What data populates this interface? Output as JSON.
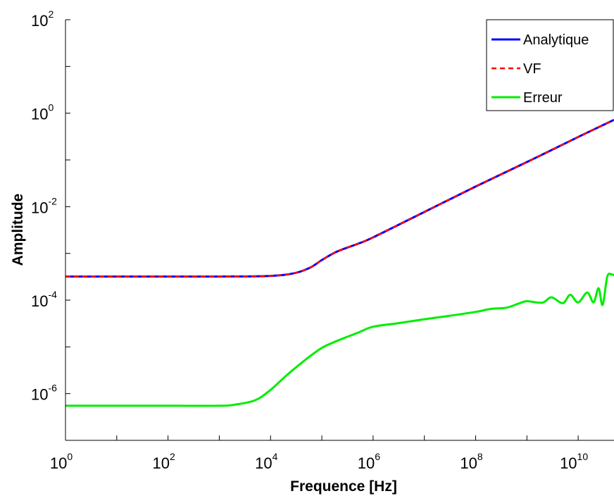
{
  "chart_data": {
    "type": "line",
    "xlabel": "Frequence [Hz]",
    "ylabel": "Amplitude",
    "xscale": "log",
    "yscale": "log",
    "xlim": [
      1,
      50000000000
    ],
    "ylim": [
      1e-07,
      100
    ],
    "grid": false,
    "legend_position": "top-right",
    "x_ticks": [
      {
        "base": "10",
        "exp": "0"
      },
      {
        "base": "10",
        "exp": "2"
      },
      {
        "base": "10",
        "exp": "4"
      },
      {
        "base": "10",
        "exp": "6"
      },
      {
        "base": "10",
        "exp": "8"
      },
      {
        "base": "10",
        "exp": "10"
      }
    ],
    "y_ticks": [
      {
        "base": "10",
        "exp": "-6"
      },
      {
        "base": "10",
        "exp": "-4"
      },
      {
        "base": "10",
        "exp": "-2"
      },
      {
        "base": "10",
        "exp": "0"
      },
      {
        "base": "10",
        "exp": "2"
      }
    ],
    "series": [
      {
        "name": "Analytique",
        "color": "#0000ff",
        "style": "solid",
        "x": [
          1,
          10,
          100,
          1000,
          10000,
          30000,
          60000,
          100000,
          200000,
          500000,
          1000000,
          10000000,
          100000000,
          1000000000,
          10000000000,
          50000000000
        ],
        "y": [
          0.00032,
          0.00032,
          0.00032,
          0.00032,
          0.00033,
          0.00038,
          0.0005,
          0.00072,
          0.0011,
          0.0016,
          0.0022,
          0.0077,
          0.027,
          0.09,
          0.31,
          0.72
        ]
      },
      {
        "name": "VF",
        "color": "#ff0000",
        "style": "dashed",
        "x": [
          1,
          10,
          100,
          1000,
          10000,
          30000,
          60000,
          100000,
          200000,
          500000,
          1000000,
          10000000,
          100000000,
          1000000000,
          10000000000,
          50000000000
        ],
        "y": [
          0.00032,
          0.00032,
          0.00032,
          0.00032,
          0.00033,
          0.00038,
          0.0005,
          0.00072,
          0.0011,
          0.0016,
          0.0022,
          0.0077,
          0.027,
          0.09,
          0.31,
          0.72
        ]
      },
      {
        "name": "Erreur",
        "color": "#00ee00",
        "style": "solid",
        "x": [
          1,
          10,
          100,
          1000,
          2000,
          5000,
          10000,
          20000,
          50000,
          100000,
          200000,
          500000,
          1000000,
          3000000,
          10000000,
          30000000,
          100000000,
          200000000,
          400000000,
          700000000,
          1000000000,
          2000000000,
          3000000000,
          5000000000,
          7000000000,
          10000000000,
          15000000000,
          20000000000,
          25000000000,
          30000000000,
          37000000000,
          45000000000,
          50000000000
        ],
        "y": [
          5.5e-07,
          5.5e-07,
          5.5e-07,
          5.5e-07,
          5.8e-07,
          7.2e-07,
          1.2e-06,
          2.4e-06,
          5.5e-06,
          9.5e-06,
          1.35e-05,
          2e-05,
          2.7e-05,
          3.2e-05,
          3.9e-05,
          4.6e-05,
          5.6e-05,
          6.5e-05,
          6.9e-05,
          8.5e-05,
          9.5e-05,
          8.8e-05,
          0.000115,
          8.6e-05,
          0.00013,
          8.9e-05,
          0.000145,
          9e-05,
          0.00018,
          7.9e-05,
          0.00032,
          0.000355,
          0.00034
        ]
      }
    ]
  }
}
